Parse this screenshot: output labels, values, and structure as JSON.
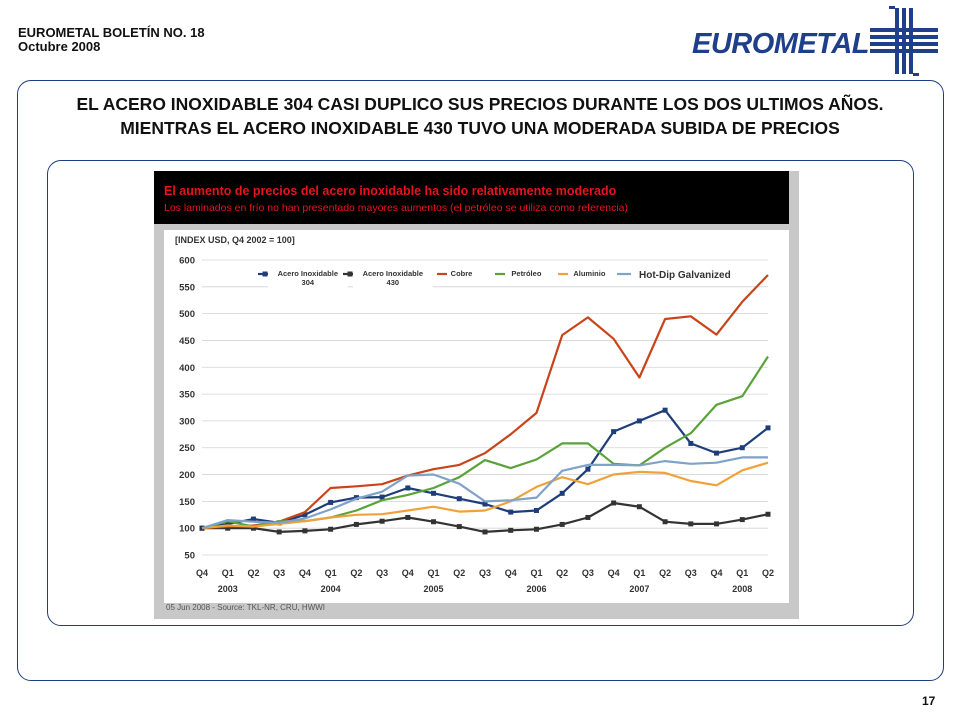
{
  "header": {
    "line1": "EUROMETAL BOLETÍN NO. 18",
    "line2": "Octubre 2008"
  },
  "logo": {
    "text": "EUROMETAL",
    "color": "#1f3f8a"
  },
  "title": "EL ACERO INOXIDABLE 304 CASI DUPLICO SUS PRECIOS DURANTE LOS DOS ULTIMOS AÑOS. MIENTRAS EL ACERO INOXIDABLE 430  TUVO UNA MODERADA SUBIDA DE PRECIOS",
  "chart_header": {
    "headline": "El aumento de precios del acero inoxidable ha sido relativamente moderado",
    "subhead": "Los laminados en frío no han presentado mayores aumentos (el petróleo se utiliza como referencia)"
  },
  "page_number": "17",
  "chart_data": {
    "type": "line",
    "index_label": "[INDEX USD, Q4 2002 = 100]",
    "source": "05 Jun 2008 - Source: TKL-NR, CRU, HWWI",
    "ylim": [
      50,
      600
    ],
    "yticks": [
      50,
      100,
      150,
      200,
      250,
      300,
      350,
      400,
      450,
      500,
      550,
      600
    ],
    "grid": true,
    "legend_position": "top",
    "x_quarters": [
      "Q4",
      "Q1",
      "Q2",
      "Q3",
      "Q4",
      "Q1",
      "Q2",
      "Q3",
      "Q4",
      "Q1",
      "Q2",
      "Q3",
      "Q4",
      "Q1",
      "Q2",
      "Q3",
      "Q4",
      "Q1",
      "Q2",
      "Q3",
      "Q4",
      "Q1",
      "Q2"
    ],
    "x_years": [
      {
        "label": "2003",
        "index": 1
      },
      {
        "label": "2004",
        "index": 5
      },
      {
        "label": "2005",
        "index": 9
      },
      {
        "label": "2006",
        "index": 13
      },
      {
        "label": "2007",
        "index": 17
      },
      {
        "label": "2008",
        "index": 21
      }
    ],
    "series": [
      {
        "name": "Acero Inoxidable\n304",
        "color": "#1f3d7a",
        "marker": "square",
        "values": [
          100,
          108,
          117,
          110,
          125,
          148,
          157,
          158,
          175,
          165,
          155,
          145,
          130,
          133,
          165,
          210,
          280,
          300,
          320,
          258,
          240,
          250,
          287
        ]
      },
      {
        "name": "Acero Inoxidable\n430",
        "color": "#333333",
        "marker": "square",
        "values": [
          100,
          100,
          100,
          93,
          95,
          98,
          107,
          113,
          120,
          112,
          103,
          93,
          96,
          98,
          107,
          120,
          147,
          140,
          112,
          108,
          108,
          116,
          126
        ]
      },
      {
        "name": "Cobre",
        "color": "#c8441a",
        "marker": "none",
        "values": [
          100,
          103,
          105,
          112,
          130,
          175,
          178,
          182,
          198,
          210,
          218,
          240,
          275,
          315,
          460,
          493,
          453,
          381,
          490,
          495,
          461,
          522,
          572
        ]
      },
      {
        "name": "Petróleo",
        "color": "#5aa23a",
        "marker": "none",
        "values": [
          100,
          113,
          103,
          113,
          113,
          120,
          133,
          152,
          162,
          175,
          195,
          227,
          212,
          228,
          258,
          258,
          220,
          217,
          250,
          277,
          330,
          346,
          420
        ]
      },
      {
        "name": "Aluminio",
        "color": "#f0a23a",
        "marker": "none",
        "values": [
          100,
          105,
          103,
          108,
          113,
          120,
          125,
          126,
          133,
          140,
          131,
          133,
          150,
          177,
          195,
          182,
          200,
          205,
          203,
          188,
          180,
          208,
          222
        ]
      },
      {
        "name": "Hot-Dip Galvanized",
        "color": "#7fa2c8",
        "marker": "none",
        "values": [
          100,
          115,
          112,
          110,
          118,
          135,
          155,
          168,
          198,
          200,
          183,
          150,
          152,
          157,
          207,
          218,
          218,
          217,
          225,
          220,
          222,
          232,
          232
        ]
      }
    ]
  }
}
